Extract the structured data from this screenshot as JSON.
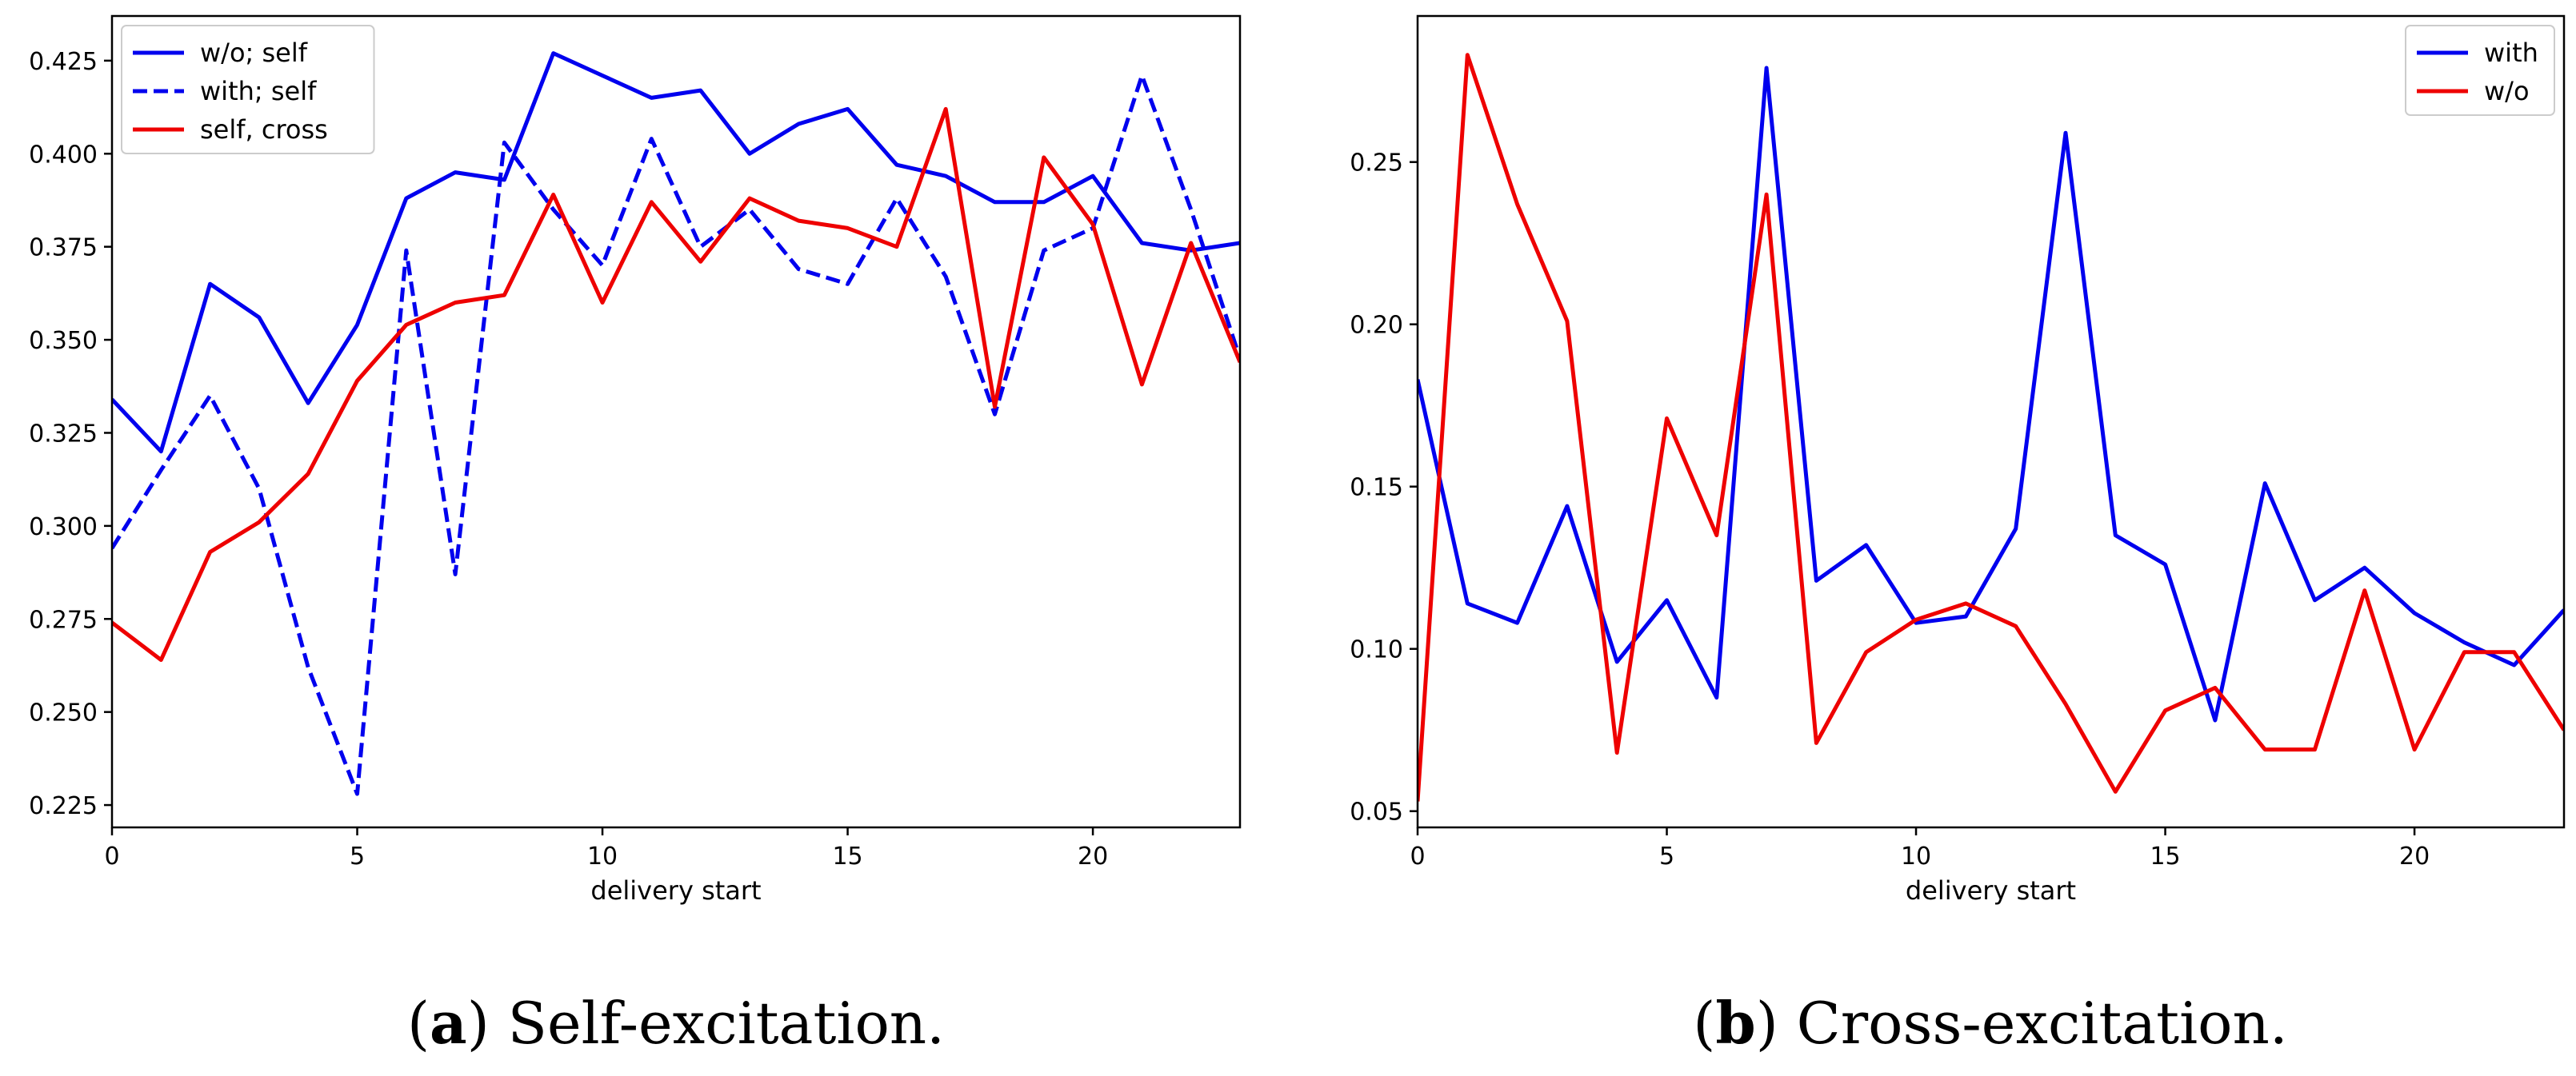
{
  "chart_data": [
    {
      "type": "line",
      "title": "",
      "caption_letter": "a",
      "caption_paren_open": "(",
      "caption_paren_close": ")",
      "caption_text": " Self-excitation.",
      "xlabel": "delivery start",
      "ylabel": "",
      "xlim": [
        0,
        23
      ],
      "ylim": [
        0.219,
        0.437
      ],
      "xticks": [
        0,
        5,
        10,
        15,
        20
      ],
      "yticks": [
        0.225,
        0.25,
        0.275,
        0.3,
        0.325,
        0.35,
        0.375,
        0.4,
        0.425
      ],
      "ytick_labels": [
        "0.225",
        "0.250",
        "0.275",
        "0.300",
        "0.325",
        "0.350",
        "0.375",
        "0.400",
        "0.425"
      ],
      "legend_position": "upper-left",
      "x": [
        0,
        1,
        2,
        3,
        4,
        5,
        6,
        7,
        8,
        9,
        10,
        11,
        12,
        13,
        14,
        15,
        16,
        17,
        18,
        19,
        20,
        21,
        22,
        23
      ],
      "series": [
        {
          "name": "w/o; self",
          "color": "#0000ee",
          "style": "solid",
          "values": [
            0.334,
            0.32,
            0.365,
            0.356,
            0.333,
            0.354,
            0.388,
            0.395,
            0.393,
            0.427,
            0.421,
            0.415,
            0.417,
            0.4,
            0.408,
            0.412,
            0.397,
            0.394,
            0.387,
            0.387,
            0.394,
            0.376,
            0.374,
            0.376
          ]
        },
        {
          "name": "with; self",
          "color": "#0000ee",
          "style": "dashed",
          "values": [
            0.294,
            0.315,
            0.335,
            0.31,
            0.262,
            0.228,
            0.374,
            0.287,
            0.403,
            0.385,
            0.37,
            0.404,
            0.375,
            0.385,
            0.369,
            0.365,
            0.388,
            0.367,
            0.33,
            0.374,
            0.38,
            0.421,
            0.385,
            0.345
          ]
        },
        {
          "name": "self, cross",
          "color": "#ee0000",
          "style": "solid",
          "values": [
            0.274,
            0.264,
            0.293,
            0.301,
            0.314,
            0.339,
            0.354,
            0.36,
            0.362,
            0.389,
            0.36,
            0.387,
            0.371,
            0.388,
            0.382,
            0.38,
            0.375,
            0.412,
            0.332,
            0.399,
            0.381,
            0.338,
            0.376,
            0.344
          ]
        }
      ]
    },
    {
      "type": "line",
      "title": "",
      "caption_letter": "b",
      "caption_paren_open": "(",
      "caption_paren_close": ")",
      "caption_text": " Cross-excitation.",
      "xlabel": "delivery start",
      "ylabel": "",
      "xlim": [
        0,
        23
      ],
      "ylim": [
        0.045,
        0.295
      ],
      "xticks": [
        0,
        5,
        10,
        15,
        20
      ],
      "yticks": [
        0.05,
        0.1,
        0.15,
        0.2,
        0.25
      ],
      "ytick_labels": [
        "0.05",
        "0.10",
        "0.15",
        "0.20",
        "0.25"
      ],
      "legend_position": "upper-right",
      "x": [
        0,
        1,
        2,
        3,
        4,
        5,
        6,
        7,
        8,
        9,
        10,
        11,
        12,
        13,
        14,
        15,
        16,
        17,
        18,
        19,
        20,
        21,
        22,
        23
      ],
      "series": [
        {
          "name": "with",
          "color": "#0000ee",
          "style": "solid",
          "values": [
            0.183,
            0.114,
            0.108,
            0.144,
            0.096,
            0.115,
            0.085,
            0.279,
            0.121,
            0.132,
            0.108,
            0.11,
            0.137,
            0.259,
            0.135,
            0.126,
            0.078,
            0.151,
            0.115,
            0.125,
            0.111,
            0.102,
            0.095,
            0.112
          ]
        },
        {
          "name": "w/o",
          "color": "#ee0000",
          "style": "solid",
          "values": [
            0.053,
            0.283,
            0.237,
            0.201,
            0.068,
            0.171,
            0.135,
            0.24,
            0.071,
            0.099,
            0.109,
            0.114,
            0.107,
            0.083,
            0.056,
            0.081,
            0.088,
            0.069,
            0.069,
            0.118,
            0.069,
            0.099,
            0.099,
            0.075
          ]
        }
      ]
    }
  ]
}
